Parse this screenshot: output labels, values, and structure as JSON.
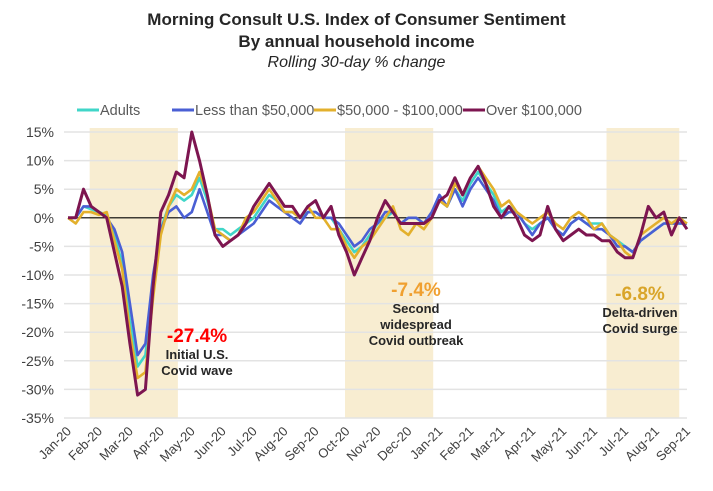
{
  "chart_data": {
    "type": "line",
    "title": "Morning Consult U.S. Index of Consumer Sentiment",
    "subtitle": "By annual household income",
    "subtitle2": "Rolling 30-day % change",
    "xlabel": "",
    "ylabel": "",
    "ylim": [
      -35,
      15
    ],
    "yticks": [
      15,
      10,
      5,
      0,
      -5,
      -10,
      -15,
      -20,
      -25,
      -30,
      -35
    ],
    "ytick_labels": [
      "15%",
      "10%",
      "5%",
      "0%",
      "-5%",
      "-10%",
      "-15%",
      "-20%",
      "-25%",
      "-30%",
      "-35%"
    ],
    "xticks": [
      "Jan-20",
      "Feb-20",
      "Mar-20",
      "Apr-20",
      "May-20",
      "Jun-20",
      "Jul-20",
      "Aug-20",
      "Sep-20",
      "Oct-20",
      "Nov-20",
      "Dec-20",
      "Jan-21",
      "Feb-21",
      "Mar-21",
      "Apr-21",
      "May-21",
      "Jun-21",
      "Jul-21",
      "Aug-21",
      "Sep-21"
    ],
    "grid": "horizontal",
    "legend_position": "top",
    "x_unit": "months since Jan-20",
    "x": [
      0,
      0.25,
      0.5,
      0.75,
      1,
      1.25,
      1.5,
      1.75,
      2,
      2.25,
      2.5,
      2.75,
      3,
      3.25,
      3.5,
      3.75,
      4,
      4.25,
      4.5,
      4.75,
      5,
      5.25,
      5.5,
      5.75,
      6,
      6.25,
      6.5,
      6.75,
      7,
      7.25,
      7.5,
      7.75,
      8,
      8.25,
      8.5,
      8.75,
      9,
      9.25,
      9.5,
      9.75,
      10,
      10.25,
      10.5,
      10.75,
      11,
      11.25,
      11.5,
      11.75,
      12,
      12.25,
      12.5,
      12.75,
      13,
      13.25,
      13.5,
      13.75,
      14,
      14.25,
      14.5,
      14.75,
      15,
      15.25,
      15.5,
      15.75,
      16,
      16.25,
      16.5,
      16.75,
      17,
      17.25,
      17.5,
      17.75,
      18,
      18.25,
      18.5,
      18.75,
      19,
      19.25,
      19.5,
      19.75,
      20
    ],
    "series": [
      {
        "name": "Adults",
        "color": "#40d6c8",
        "values": [
          0,
          0,
          2,
          1.5,
          1,
          0.5,
          -3,
          -8,
          -18,
          -26,
          -24,
          -12,
          -2,
          2,
          4,
          3,
          4,
          7,
          3,
          -2,
          -2,
          -3,
          -2,
          -1,
          0,
          2,
          4,
          3,
          1,
          1,
          0,
          1,
          1,
          0,
          0,
          -2,
          -4,
          -6,
          -5,
          -3,
          -1,
          0,
          1,
          -1,
          0,
          0,
          -1,
          0,
          3,
          2,
          5,
          3,
          6,
          8,
          6,
          4,
          1,
          2,
          1,
          -1,
          -2,
          -1,
          0,
          -2,
          -3,
          -1,
          0,
          -1,
          -1,
          -1,
          -3,
          -4,
          -5,
          -6,
          -4,
          -3,
          -2,
          -1,
          -1,
          -1,
          -1
        ]
      },
      {
        "name": "Less than $50,000",
        "color": "#4a5fd4",
        "values": [
          0,
          0,
          2,
          2,
          1,
          0,
          -2,
          -6,
          -15,
          -24,
          -22,
          -10,
          -2,
          1,
          2,
          0,
          1,
          5,
          1,
          -3,
          -3,
          -4,
          -3,
          -2,
          -1,
          1,
          3,
          2,
          1,
          0,
          -1,
          1,
          1,
          0,
          0,
          -1,
          -3,
          -5,
          -4,
          -2,
          -1,
          1,
          1,
          -1,
          0,
          0,
          -1,
          1,
          4,
          2,
          5,
          2,
          5,
          7,
          5,
          3,
          0,
          1,
          1,
          -1,
          -3,
          -1,
          0,
          -2,
          -3,
          -1,
          0,
          -1,
          -2,
          -2,
          -3,
          -5,
          -5,
          -6,
          -4,
          -3,
          -2,
          -1,
          -1,
          -1,
          -1
        ]
      },
      {
        "name": "$50,000 - $100,000",
        "color": "#e3b02c",
        "values": [
          0,
          -1,
          1,
          1,
          0.5,
          1,
          -4,
          -9,
          -20,
          -28,
          -27,
          -14,
          -3,
          2,
          5,
          4,
          5,
          8,
          4,
          -2,
          -3,
          -4,
          -3,
          0,
          1,
          3,
          5,
          3,
          1,
          1,
          0,
          2,
          0,
          0,
          -2,
          -2,
          -5,
          -7,
          -5,
          -4,
          -2,
          0,
          2,
          -2,
          -3,
          -1,
          -2,
          0,
          3,
          2,
          6,
          4,
          7,
          9,
          7,
          5,
          2,
          3,
          1,
          0,
          -1,
          0,
          1,
          -1,
          -2,
          0,
          1,
          0,
          -2,
          -1,
          -3,
          -4,
          -6,
          -7,
          -3,
          -2,
          -1,
          0,
          -1,
          0,
          -1
        ]
      },
      {
        "name": "Over $100,000",
        "color": "#7d1550",
        "values": [
          0,
          0,
          5,
          2,
          1,
          0,
          -6,
          -12,
          -22,
          -31,
          -30,
          -12,
          1,
          4,
          8,
          7,
          15,
          10,
          4,
          -3,
          -5,
          -4,
          -3,
          -1,
          2,
          4,
          6,
          4,
          2,
          2,
          0,
          2,
          3,
          0,
          2,
          -3,
          -6,
          -10,
          -7,
          -4,
          0,
          3,
          1,
          -1,
          -1,
          -1,
          -1,
          0,
          3,
          4,
          7,
          4,
          7,
          9,
          6,
          2,
          0,
          2,
          0,
          -3,
          -4,
          -3,
          2,
          -2,
          -4,
          -3,
          -2,
          -3,
          -3,
          -4,
          -4,
          -6,
          -7,
          -7,
          -3,
          2,
          0,
          1,
          -3,
          0,
          -2
        ]
      }
    ],
    "shaded_periods": [
      {
        "start": 0.7,
        "end": 3.55
      },
      {
        "start": 8.95,
        "end": 11.8
      },
      {
        "start": 17.4,
        "end": 19.75
      }
    ],
    "annotations": [
      {
        "value": "-27.4%",
        "color": "#ff0000",
        "lines": [
          "Initial U.S.",
          "Covid wave"
        ]
      },
      {
        "value": "-7.4%",
        "color": "#f0a030",
        "lines": [
          "Second",
          "widespread",
          "Covid outbreak"
        ]
      },
      {
        "value": "-6.8%",
        "color": "#d9a52a",
        "lines": [
          "Delta-driven",
          "Covid surge"
        ]
      }
    ],
    "shade_color": "#f8edd1"
  }
}
